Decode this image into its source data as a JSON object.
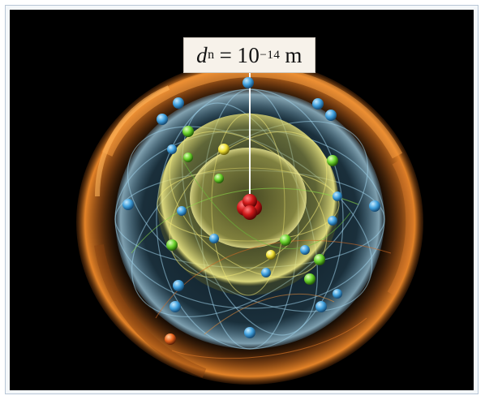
{
  "label": {
    "symbol": "d",
    "subscript": "n",
    "equals": "=",
    "base": "10",
    "exponent": "−14",
    "unit": "m"
  },
  "colors": {
    "background": "#000000",
    "outer_shell": "#e07a1f",
    "middle_shell": "#7fb6d6",
    "inner_shell": "#e8e06a",
    "nucleus": "#c81e1e",
    "electron_blue": "#4aa6e0",
    "electron_green": "#7ed83a",
    "electron_yellow": "#f2e640",
    "electron_orange": "#e8641e"
  }
}
